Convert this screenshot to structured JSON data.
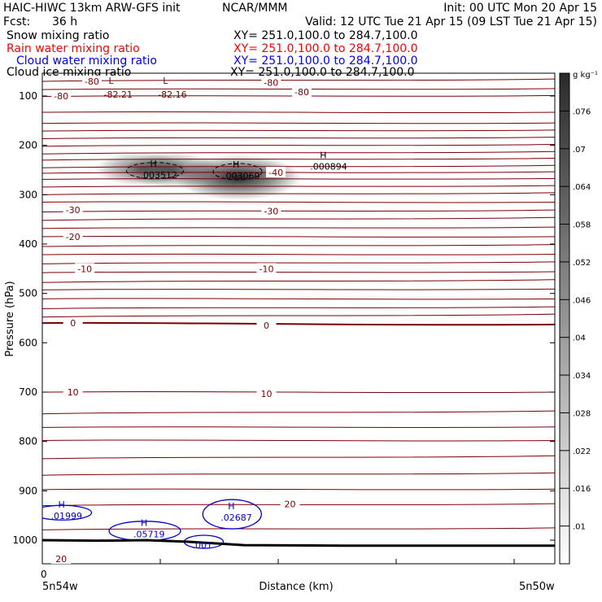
{
  "header": {
    "title_left": "HAIC-HIWC 13km ARW-GFS init",
    "org": "NCAR/MMM",
    "init": "Init: 00 UTC Mon 20 Apr 15",
    "fcst_label": "Fcst:",
    "fcst_value": "36 h",
    "valid": "Valid: 12 UTC Tue 21 Apr 15 (09 LST Tue 21 Apr 15)"
  },
  "fields": [
    {
      "name": "Snow mixing ratio",
      "xy": "XY= 251.0,100.0 to 284.7,100.0",
      "color": "#000000"
    },
    {
      "name": "Rain water mixing ratio",
      "xy": "XY= 251.0,100.0 to 284.7,100.0",
      "color": "#ff0000"
    },
    {
      "name": "Cloud water mixing ratio",
      "xy": "XY= 251.0,100.0 to 284.7,100.0",
      "color": "#0000ff"
    },
    {
      "name": "Cloud ice mixing ratio",
      "xy": "XY= 251.0,100.0 to 284.7,100.0",
      "color": "#000000"
    }
  ],
  "colors": {
    "temperature": "#7a0000",
    "cloud_water": "#0000cc",
    "snow": "#000000",
    "terrain": "#000000"
  },
  "chart_data": {
    "type": "heatmap",
    "ylabel": "Pressure (hPa)",
    "xlabel": "Distance (km)",
    "x_start_label": "5n54w",
    "x_end_label": "5n50w",
    "x_origin_tick": "0",
    "yticks": [
      "100",
      "200",
      "300",
      "400",
      "500",
      "600",
      "700",
      "800",
      "900",
      "1000"
    ],
    "colorbar": {
      "unit": "g kg⁻¹",
      "ticks": [
        ".01",
        ".016",
        ".022",
        ".028",
        ".034",
        ".04",
        ".046",
        ".052",
        ".058",
        ".064",
        ".07",
        ".076"
      ]
    },
    "temperature_labels": [
      {
        "text": "-80",
        "p": 100,
        "d": 0.08
      },
      {
        "text": "-80",
        "p": 70,
        "d": 0.21
      },
      {
        "text": "-80",
        "p": 73,
        "d": 0.97
      },
      {
        "text": "-80",
        "p": 92,
        "d": 1.1
      },
      {
        "text": "-40",
        "p": 255,
        "d": 0.99
      },
      {
        "text": "-30",
        "p": 331,
        "d": 0.13
      },
      {
        "text": "-30",
        "p": 333,
        "d": 0.97
      },
      {
        "text": "-20",
        "p": 385,
        "d": 0.13
      },
      {
        "text": "-10",
        "p": 450,
        "d": 0.18
      },
      {
        "text": "-10",
        "p": 450,
        "d": 0.95
      },
      {
        "text": "0",
        "p": 560,
        "d": 0.13
      },
      {
        "text": "0",
        "p": 565,
        "d": 0.95
      },
      {
        "text": "10",
        "p": 700,
        "d": 0.13
      },
      {
        "text": "10",
        "p": 703,
        "d": 0.95
      },
      {
        "text": "20",
        "p": 1038,
        "d": 0.08
      },
      {
        "text": "20",
        "p": 927,
        "d": 1.05
      }
    ],
    "lows": [
      {
        "text": "L",
        "value": "-82.21",
        "p": 75,
        "d": 0.35
      },
      {
        "text": "L",
        "value": "-82.16",
        "p": 75,
        "d": 0.58
      }
    ],
    "snow_maxima": [
      {
        "text": "H",
        "value": ".003512",
        "p": 243,
        "d": 0.45
      },
      {
        "text": "H",
        "value": ".003069",
        "p": 245,
        "d": 0.8
      },
      {
        "text": "H",
        "value": ".000894",
        "p": 226,
        "d": 1.17
      }
    ],
    "snow_shading": [
      {
        "d": 0.42,
        "p": 248,
        "value": 0.035
      },
      {
        "d": 0.55,
        "p": 250,
        "value": 0.04
      },
      {
        "d": 0.83,
        "p": 265,
        "value": 0.076
      }
    ],
    "cloud_water_maxima": [
      {
        "text": "H",
        "value": ".01999",
        "p": 941,
        "d": 0.05
      },
      {
        "text": "H",
        "value": ".05719",
        "p": 978,
        "d": 0.4
      },
      {
        "text": "H",
        "value": ".02687",
        "p": 944,
        "d": 0.77
      },
      {
        "text": "",
        "value": ".001",
        "p": 1000,
        "d": 0.65
      }
    ],
    "plot_label": "20"
  }
}
